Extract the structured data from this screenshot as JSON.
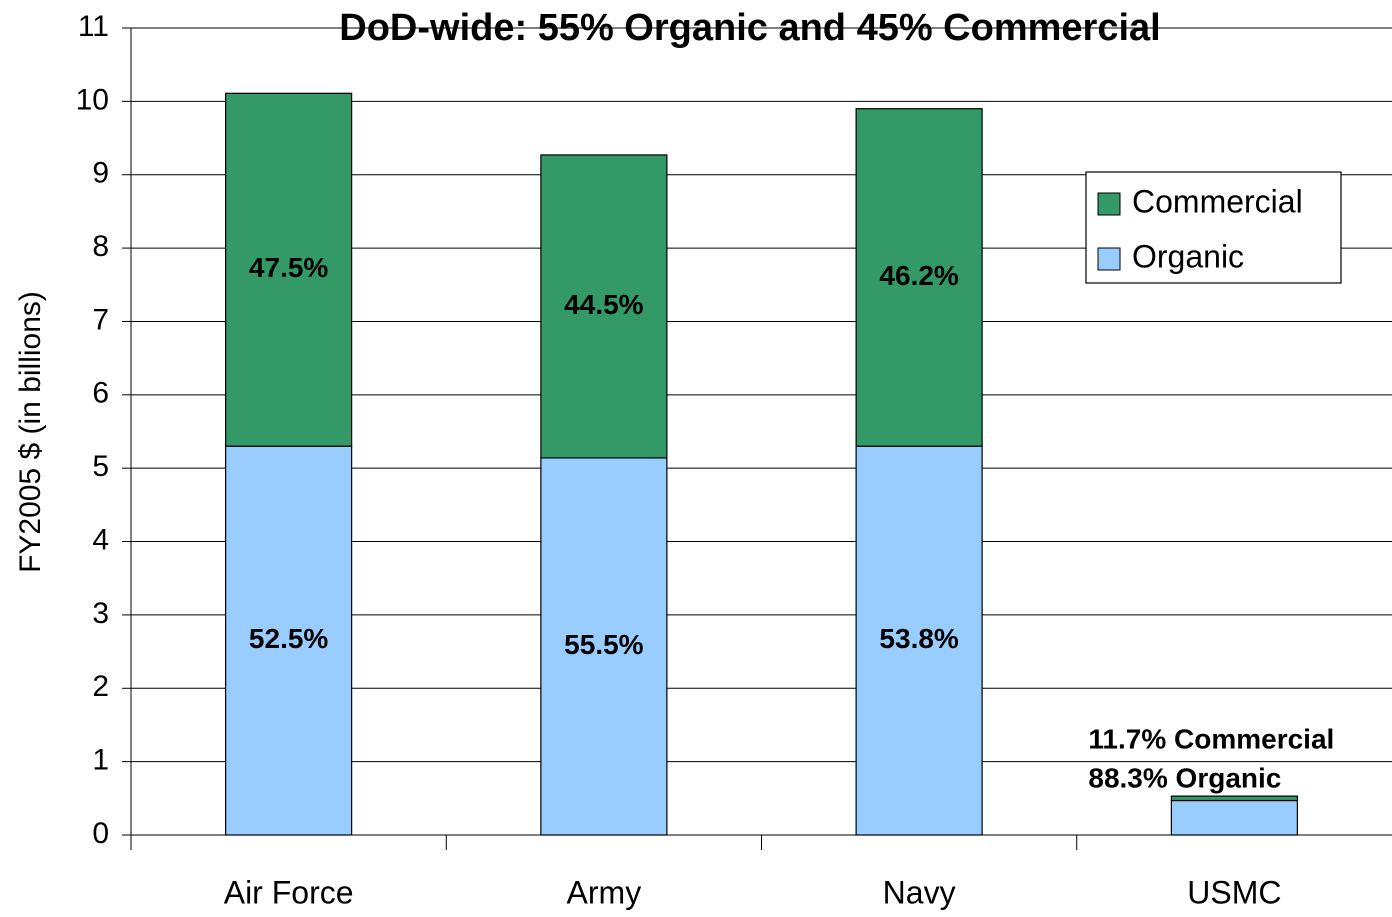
{
  "chart_data": {
    "type": "stacked_bar",
    "title": "DoD-wide: 55% Organic and 45% Commercial",
    "y_label": "FY2005 $ (in billions)",
    "categories": [
      "Air Force",
      "Army",
      "Navy",
      "USMC"
    ],
    "series": [
      {
        "name": "Organic",
        "color": "#99ccff",
        "values": [
          5.3,
          5.14,
          5.3,
          0.47
        ],
        "labels": [
          "52.5%",
          "55.5%",
          "53.8%",
          null
        ],
        "label_color": "#000000"
      },
      {
        "name": "Commercial",
        "color": "#339966",
        "values": [
          4.81,
          4.13,
          4.6,
          0.06
        ],
        "labels": [
          "47.5%",
          "44.5%",
          "46.2%",
          null
        ],
        "label_color": "#ffffff"
      }
    ],
    "annotations": [
      "11.7% Commercial",
      "88.3% Organic"
    ],
    "ylim": [
      0,
      11
    ],
    "yticks": [
      0,
      1,
      2,
      3,
      4,
      5,
      6,
      7,
      8,
      9,
      10,
      11
    ],
    "grid": true,
    "legend": "upper right"
  }
}
